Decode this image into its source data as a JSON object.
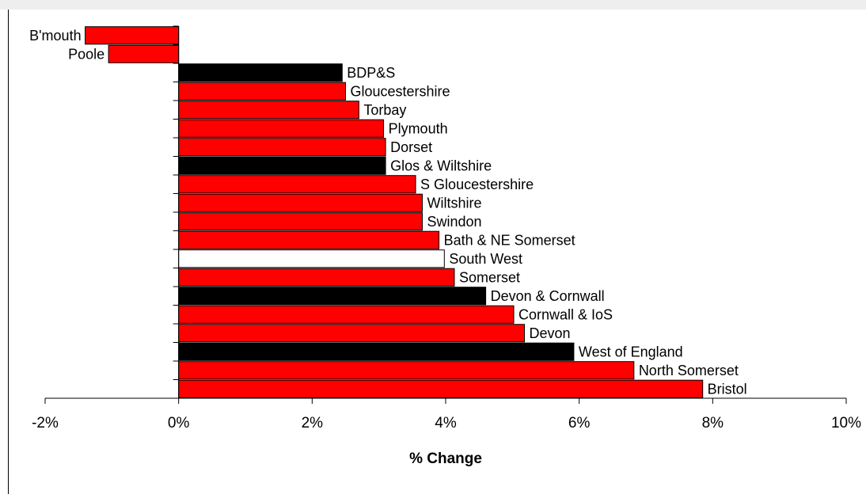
{
  "chart_data": {
    "type": "bar",
    "orientation": "horizontal",
    "title": "",
    "xlabel": "% Change",
    "ylabel": "",
    "xlim": [
      -2,
      10
    ],
    "x_ticks": [
      -2,
      0,
      2,
      4,
      6,
      8,
      10
    ],
    "x_tick_labels": [
      "-2%",
      "0%",
      "2%",
      "4%",
      "6%",
      "8%",
      "10%"
    ],
    "grid": false,
    "legend": "none",
    "categories": [
      "B'mouth",
      "Poole",
      "BDP&S",
      "Gloucestershire",
      "Torbay",
      "Plymouth",
      "Dorset",
      "Glos & Wiltshire",
      "S Gloucestershire",
      "Wiltshire",
      "Swindon",
      "Bath & NE Somerset",
      "South West",
      "Somerset",
      "Devon & Cornwall",
      "Cornwall & IoS",
      "Devon",
      "West of England",
      "North Somerset",
      "Bristol"
    ],
    "values": [
      -1.4,
      -1.05,
      2.45,
      2.5,
      2.7,
      3.07,
      3.1,
      3.1,
      3.55,
      3.65,
      3.65,
      3.9,
      3.98,
      4.13,
      4.6,
      5.02,
      5.18,
      5.92,
      6.82,
      7.85
    ],
    "bar_colors": [
      "#ff0000",
      "#ff0000",
      "#000000",
      "#ff0000",
      "#ff0000",
      "#ff0000",
      "#ff0000",
      "#000000",
      "#ff0000",
      "#ff0000",
      "#ff0000",
      "#ff0000",
      "#ffffff",
      "#ff0000",
      "#000000",
      "#ff0000",
      "#ff0000",
      "#000000",
      "#ff0000",
      "#ff0000"
    ]
  },
  "colors": {
    "local_authority": "#ff0000",
    "sub_region": "#000000",
    "region": "#ffffff",
    "outline": "#000000"
  }
}
